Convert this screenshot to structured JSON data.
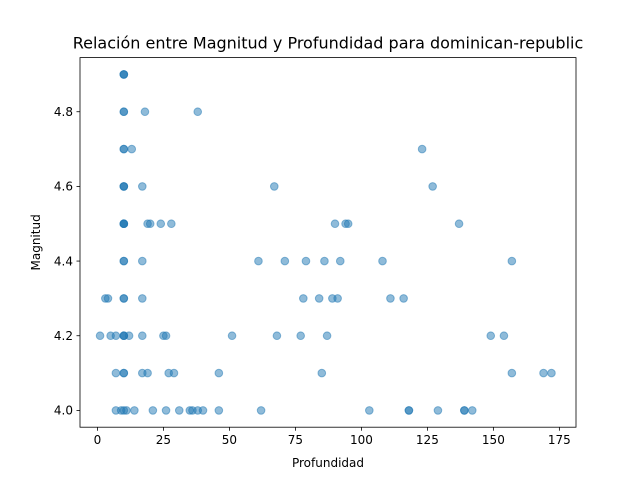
{
  "chart_data": {
    "type": "scatter",
    "title": "Relación entre Magnitud y Profundidad para dominican-republic",
    "xlabel": "Profundidad",
    "ylabel": "Magnitud",
    "xlim": [
      -6.6,
      181.3
    ],
    "ylim": [
      3.955,
      4.945
    ],
    "xticks": [
      0,
      25,
      50,
      75,
      100,
      125,
      150,
      175
    ],
    "yticks": [
      4.0,
      4.2,
      4.4,
      4.6,
      4.8
    ],
    "ytick_labels": [
      "4.0",
      "4.2",
      "4.4",
      "4.6",
      "4.8"
    ],
    "grid": false,
    "legend": "none",
    "marker_color": "#1f77b4",
    "marker_alpha": 0.5,
    "series": [
      {
        "points": [
          [
            10,
            4.9
          ],
          [
            10,
            4.9
          ],
          [
            10,
            4.9
          ],
          [
            10,
            4.8
          ],
          [
            10,
            4.8
          ],
          [
            18,
            4.8
          ],
          [
            38,
            4.8
          ],
          [
            10,
            4.7
          ],
          [
            10,
            4.7
          ],
          [
            13,
            4.7
          ],
          [
            123,
            4.7
          ],
          [
            10,
            4.6
          ],
          [
            10,
            4.6
          ],
          [
            10,
            4.6
          ],
          [
            17,
            4.6
          ],
          [
            67,
            4.6
          ],
          [
            127,
            4.6
          ],
          [
            10,
            4.5
          ],
          [
            10,
            4.5
          ],
          [
            10,
            4.5
          ],
          [
            10,
            4.5
          ],
          [
            19,
            4.5
          ],
          [
            20,
            4.5
          ],
          [
            24,
            4.5
          ],
          [
            28,
            4.5
          ],
          [
            90,
            4.5
          ],
          [
            94,
            4.5
          ],
          [
            95,
            4.5
          ],
          [
            137,
            4.5
          ],
          [
            10,
            4.4
          ],
          [
            10,
            4.4
          ],
          [
            17,
            4.4
          ],
          [
            61,
            4.4
          ],
          [
            71,
            4.4
          ],
          [
            79,
            4.4
          ],
          [
            86,
            4.4
          ],
          [
            92,
            4.4
          ],
          [
            108,
            4.4
          ],
          [
            157,
            4.4
          ],
          [
            3,
            4.3
          ],
          [
            4,
            4.3
          ],
          [
            10,
            4.3
          ],
          [
            10,
            4.3
          ],
          [
            17,
            4.3
          ],
          [
            78,
            4.3
          ],
          [
            84,
            4.3
          ],
          [
            89,
            4.3
          ],
          [
            91,
            4.3
          ],
          [
            111,
            4.3
          ],
          [
            116,
            4.3
          ],
          [
            1,
            4.2
          ],
          [
            5,
            4.2
          ],
          [
            7,
            4.2
          ],
          [
            10,
            4.2
          ],
          [
            10,
            4.2
          ],
          [
            10,
            4.2
          ],
          [
            12,
            4.2
          ],
          [
            17,
            4.2
          ],
          [
            25,
            4.2
          ],
          [
            26,
            4.2
          ],
          [
            51,
            4.2
          ],
          [
            68,
            4.2
          ],
          [
            77,
            4.2
          ],
          [
            87,
            4.2
          ],
          [
            149,
            4.2
          ],
          [
            154,
            4.2
          ],
          [
            7,
            4.1
          ],
          [
            10,
            4.1
          ],
          [
            10,
            4.1
          ],
          [
            17,
            4.1
          ],
          [
            19,
            4.1
          ],
          [
            27,
            4.1
          ],
          [
            29,
            4.1
          ],
          [
            46,
            4.1
          ],
          [
            85,
            4.1
          ],
          [
            157,
            4.1
          ],
          [
            169,
            4.1
          ],
          [
            172,
            4.1
          ],
          [
            7,
            4.0
          ],
          [
            9,
            4.0
          ],
          [
            10,
            4.0
          ],
          [
            11,
            4.0
          ],
          [
            14,
            4.0
          ],
          [
            21,
            4.0
          ],
          [
            26,
            4.0
          ],
          [
            31,
            4.0
          ],
          [
            35,
            4.0
          ],
          [
            36,
            4.0
          ],
          [
            38,
            4.0
          ],
          [
            40,
            4.0
          ],
          [
            46,
            4.0
          ],
          [
            62,
            4.0
          ],
          [
            103,
            4.0
          ],
          [
            118,
            4.0
          ],
          [
            118,
            4.0
          ],
          [
            129,
            4.0
          ],
          [
            139,
            4.0
          ],
          [
            139,
            4.0
          ],
          [
            142,
            4.0
          ]
        ]
      }
    ]
  }
}
